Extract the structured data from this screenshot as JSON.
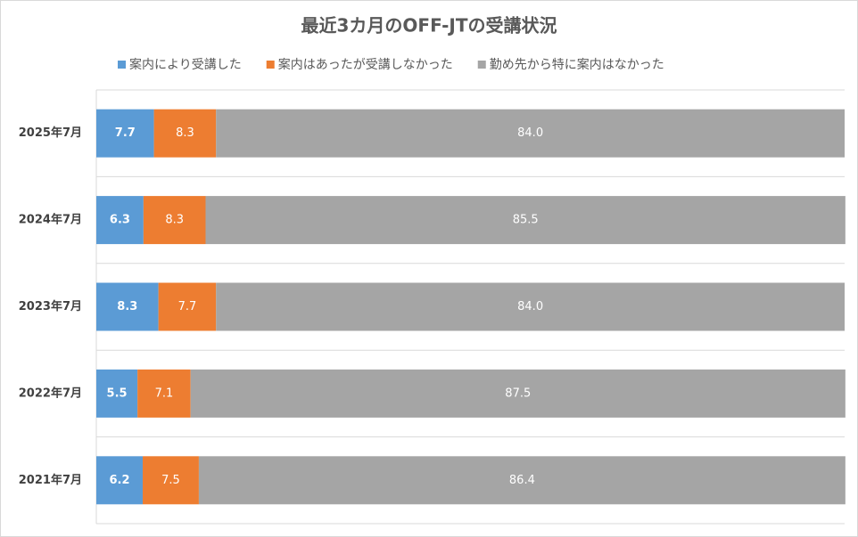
{
  "chart_data": {
    "type": "stacked-bar-horizontal",
    "title": "最近3カ月のOFF-JTの受講状況",
    "categories": [
      "2025年7月",
      "2024年7月",
      "2023年7月",
      "2022年7月",
      "2021年7月"
    ],
    "series": [
      {
        "name": "案内により受講した",
        "color": "#5b9bd5",
        "values": [
          7.7,
          6.3,
          8.3,
          5.5,
          6.2
        ]
      },
      {
        "name": "案内はあったが受講しなかった",
        "color": "#ed7d31",
        "values": [
          8.3,
          8.3,
          7.7,
          7.1,
          7.5
        ]
      },
      {
        "name": "勤め先から特に案内はなかった",
        "color": "#a5a5a5",
        "values": [
          84.0,
          85.5,
          84.0,
          87.5,
          86.4
        ],
        "value_labels": [
          "84.0",
          "85.5",
          "84.0",
          "87.5",
          "86.4"
        ]
      }
    ],
    "xlim": [
      0,
      100
    ]
  }
}
